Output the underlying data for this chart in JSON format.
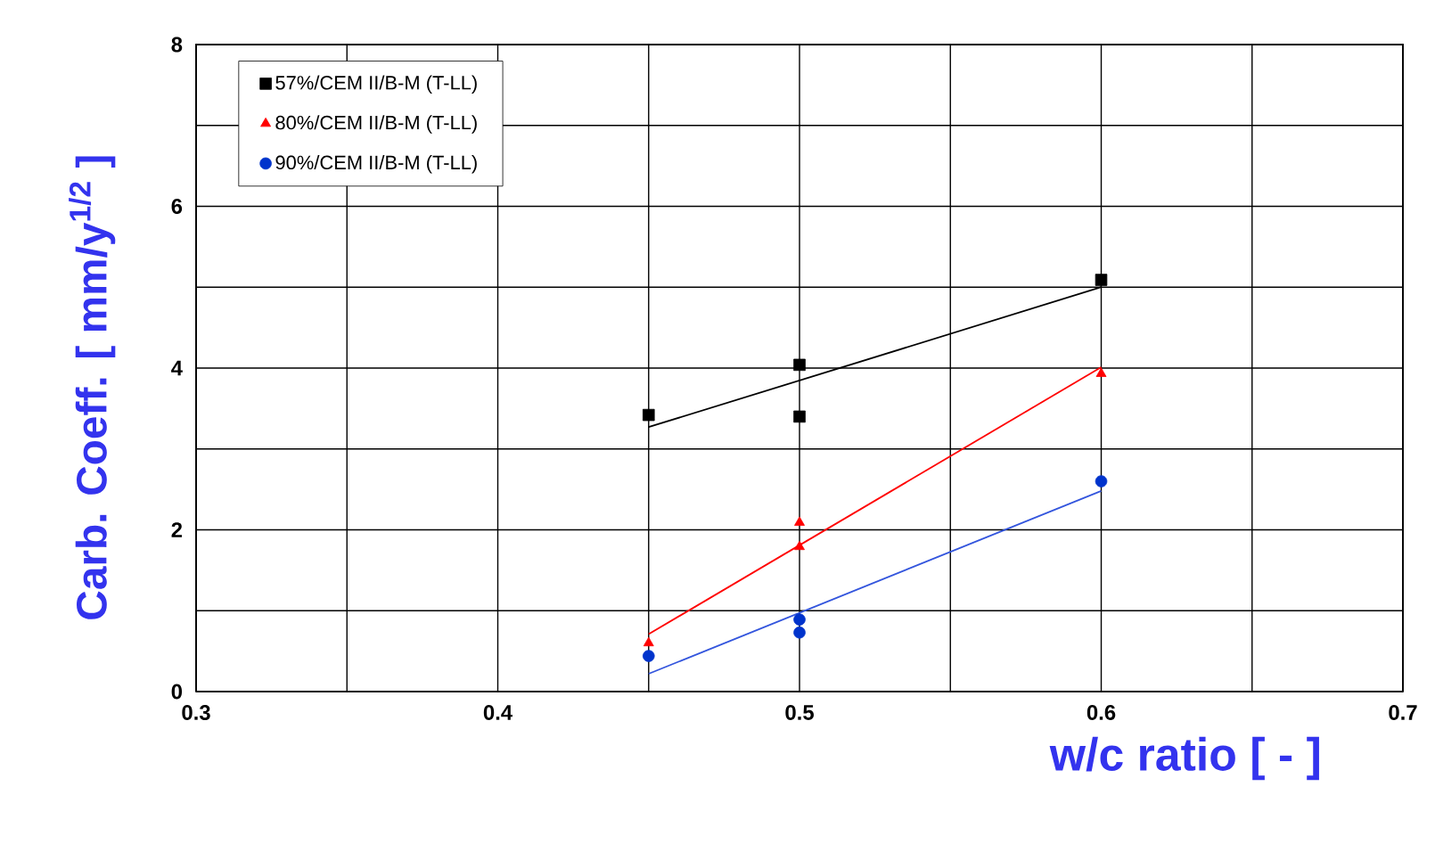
{
  "chart_data": {
    "type": "scatter",
    "xlabel": "w/c ratio [ - ]",
    "ylabel": "Carb. Coeff. [ mm/y$^{1/2}$ ]",
    "xlim": [
      0.3,
      0.7
    ],
    "ylim": [
      0,
      8
    ],
    "xticks": [
      0.3,
      {
        "value": 0.35,
        "label": null
      },
      0.4,
      {
        "value": 0.45,
        "label": null
      },
      0.5,
      {
        "value": 0.55,
        "label": null
      },
      0.6,
      {
        "value": 0.65,
        "label": null
      },
      0.7
    ],
    "yticks": [
      0,
      {
        "value": 1,
        "label": null
      },
      2,
      {
        "value": 3,
        "label": null
      },
      4,
      {
        "value": 5,
        "label": null
      },
      6,
      {
        "value": 7,
        "label": null
      },
      8
    ],
    "grid": true,
    "legend": "top left",
    "series": [
      {
        "name": "57%/CEM II/B-M (T-LL)",
        "color": "#000000",
        "marker": "square",
        "x": [
          0.45,
          0.5,
          0.5,
          0.6
        ],
        "values": [
          3.42,
          4.04,
          3.4,
          5.09
        ]
      },
      {
        "name": "80%/CEM II/B-M (T-LL)",
        "color": "#ff0000",
        "marker": "triangle",
        "x": [
          0.45,
          0.5,
          0.5,
          0.6
        ],
        "values": [
          0.6,
          2.09,
          1.79,
          3.93
        ]
      },
      {
        "name": "90%/CEM II/B-M (T-LL)",
        "color": "#0033cc",
        "marker": "circle",
        "x": [
          0.45,
          0.5,
          0.5,
          0.6
        ],
        "values": [
          0.44,
          0.89,
          0.73,
          2.6
        ]
      },
      {
        "type": "line",
        "color": "#000000",
        "marker": "none",
        "x": [
          0.45,
          0.6
        ],
        "values": [
          3.27,
          5.0
        ]
      },
      {
        "type": "line",
        "color": "#ff0000",
        "marker": "none",
        "x": [
          0.45,
          0.6
        ],
        "values": [
          0.71,
          4.01
        ]
      },
      {
        "type": "line",
        "color": "#3355dd",
        "marker": "none",
        "x": [
          0.45,
          0.6
        ],
        "values": [
          0.22,
          2.48
        ]
      }
    ]
  }
}
